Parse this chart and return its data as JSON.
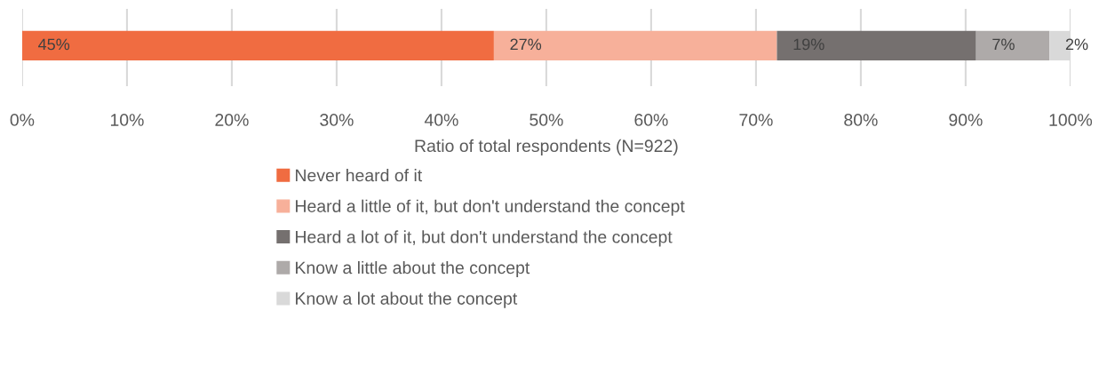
{
  "chart_data": {
    "type": "bar",
    "orientation": "horizontal",
    "stacked": true,
    "categories": [
      null
    ],
    "xlabel": "Ratio of total respondents (N=922)",
    "series": [
      {
        "name": "Never heard of it",
        "color": "#f06c41",
        "values": [
          45
        ],
        "value_labels": [
          "45%"
        ]
      },
      {
        "name": "Heard a little of it, but don't understand the concept",
        "color": "#f7b09a",
        "values": [
          27
        ],
        "value_labels": [
          "27%"
        ]
      },
      {
        "name": "Heard a lot of it, but don't understand the concept",
        "color": "#75706f",
        "values": [
          19
        ],
        "value_labels": [
          "19%"
        ]
      },
      {
        "name": "Know a little about the concept",
        "color": "#aeaaa9",
        "values": [
          7
        ],
        "value_labels": [
          "7%"
        ]
      },
      {
        "name": "Know a lot about the concept",
        "color": "#d9d9d9",
        "values": [
          2
        ],
        "value_labels": [
          "2%"
        ]
      }
    ],
    "xlim": [
      0,
      100
    ],
    "xticks": [
      {
        "value": 0,
        "label": "0%"
      },
      {
        "value": 10,
        "label": "10%"
      },
      {
        "value": 20,
        "label": "20%"
      },
      {
        "value": 30,
        "label": "30%"
      },
      {
        "value": 40,
        "label": "40%"
      },
      {
        "value": 50,
        "label": "50%"
      },
      {
        "value": 60,
        "label": "60%"
      },
      {
        "value": 70,
        "label": "70%"
      },
      {
        "value": 80,
        "label": "80%"
      },
      {
        "value": 90,
        "label": "90%"
      },
      {
        "value": 100,
        "label": "100%"
      }
    ],
    "grid": "x",
    "legend": "bottom",
    "tick_labels": "x"
  }
}
